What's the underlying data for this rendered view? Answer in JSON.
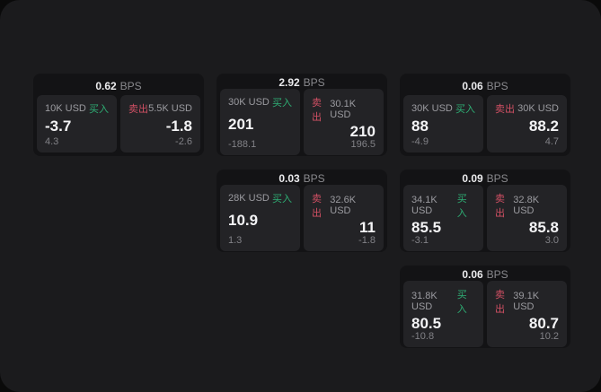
{
  "app": {
    "bps_suffix": "BPS",
    "buy_label": "买入",
    "sell_label": "卖出"
  },
  "colors": {
    "page_background": "#1b1b1d",
    "outer_background": "#0a0a0a",
    "card_background": "#131315",
    "tile_background": "#232326",
    "buy_accent": "#2eae74",
    "sell_accent": "#d25064"
  },
  "cards": [
    {
      "spread": "0.62",
      "buy": {
        "size": "10K USD",
        "price": "-3.7",
        "delta": "4.3"
      },
      "sell": {
        "size": "5.5K USD",
        "price": "-1.8",
        "delta": "-2.6"
      }
    },
    {
      "spread": "2.92",
      "buy": {
        "size": "30K USD",
        "price": "201",
        "delta": "-188.1"
      },
      "sell": {
        "size": "30.1K USD",
        "price": "210",
        "delta": "196.5"
      }
    },
    {
      "spread": "0.06",
      "buy": {
        "size": "30K USD",
        "price": "88",
        "delta": "-4.9"
      },
      "sell": {
        "size": "30K USD",
        "price": "88.2",
        "delta": "4.7"
      }
    },
    {
      "spread": "0.03",
      "buy": {
        "size": "28K USD",
        "price": "10.9",
        "delta": "1.3"
      },
      "sell": {
        "size": "32.6K USD",
        "price": "11",
        "delta": "-1.8"
      }
    },
    {
      "spread": "0.09",
      "buy": {
        "size": "34.1K USD",
        "price": "85.5",
        "delta": "-3.1"
      },
      "sell": {
        "size": "32.8K USD",
        "price": "85.8",
        "delta": "3.0"
      }
    },
    {
      "spread": "0.06",
      "buy": {
        "size": "31.8K USD",
        "price": "80.5",
        "delta": "-10.8"
      },
      "sell": {
        "size": "39.1K USD",
        "price": "80.7",
        "delta": "10.2"
      }
    }
  ]
}
